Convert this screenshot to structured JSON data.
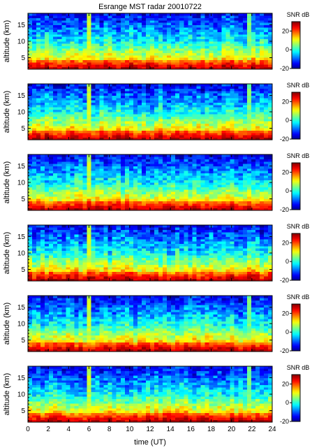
{
  "chart_data": {
    "type": "heatmap",
    "title": "Esrange MST radar 20010722",
    "xlabel": "time (UT)",
    "ylabel": "altitude (km)",
    "xlim": [
      0,
      24
    ],
    "ylim": [
      1.5,
      18.5
    ],
    "x_ticks": [
      0,
      2,
      4,
      6,
      8,
      10,
      12,
      14,
      16,
      18,
      20,
      22,
      24
    ],
    "y_ticks": [
      5,
      10,
      15
    ],
    "colorbar": {
      "label": "SNR dB",
      "range": [
        -20,
        30
      ],
      "ticks": [
        -20,
        0,
        20
      ],
      "colormap": "jet",
      "colors": [
        "#00008f",
        "#0000ff",
        "#00ffff",
        "#ffff00",
        "#ff0000",
        "#800000"
      ]
    },
    "panel_count": 6,
    "grid": false,
    "layout": "six vertically stacked panels sharing the time axis",
    "notes_visible": "strong echo layer near 3 km altitude, vertical bands near 6 h and 22 h"
  }
}
